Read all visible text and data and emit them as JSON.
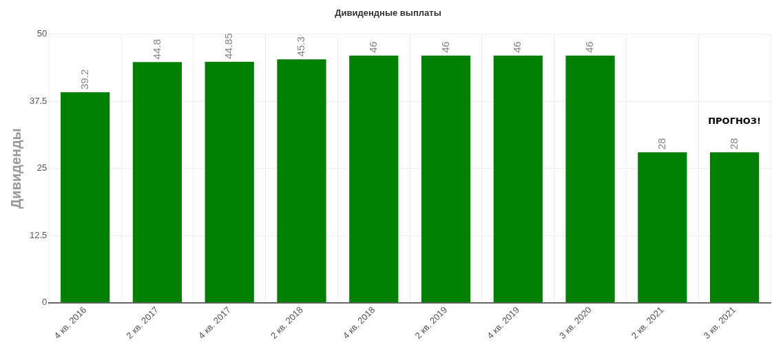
{
  "chart_data": {
    "type": "bar",
    "title": "Дивидендные выплаты",
    "ylabel": "Дивиденды",
    "categories": [
      "4 кв. 2016",
      "2 кв. 2017",
      "4 кв. 2017",
      "2 кв. 2018",
      "4 кв. 2018",
      "2 кв. 2019",
      "4 кв. 2019",
      "3 кв. 2020",
      "2 кв. 2021",
      "3 кв. 2021"
    ],
    "values": [
      39.2,
      44.8,
      44.85,
      45.3,
      46,
      46,
      46,
      46,
      28,
      28
    ],
    "color": "#008000",
    "ylim": [
      0,
      50
    ],
    "yticks": [
      0,
      12.5,
      25,
      37.5,
      50
    ],
    "grid": true,
    "data_labels": true,
    "legend": false,
    "annotations": [
      "ПРОГНОЗ!"
    ]
  }
}
